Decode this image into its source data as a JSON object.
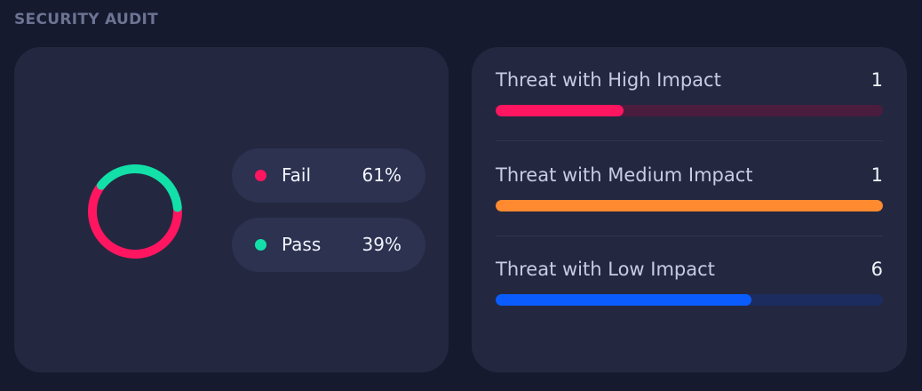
{
  "header": {
    "title": "SECURITY AUDIT"
  },
  "audit": {
    "legend": [
      {
        "label": "Fail",
        "value": "61%",
        "percent": 61,
        "color": "#ff1560"
      },
      {
        "label": "Pass",
        "value": "39%",
        "percent": 39,
        "color": "#12e0a8"
      }
    ]
  },
  "threats": [
    {
      "label": "Threat with High Impact",
      "count": "1",
      "fill": 0.33,
      "color": "#ff1560",
      "track_color": "#4a1d3e"
    },
    {
      "label": "Threat with Medium Impact",
      "count": "1",
      "fill": 1.0,
      "color": "#ff8a30",
      "track_color": "#4a3328"
    },
    {
      "label": "Threat with Low Impact",
      "count": "6",
      "fill": 0.66,
      "color": "#0b5cff",
      "track_color": "#1c2c5e"
    }
  ]
}
